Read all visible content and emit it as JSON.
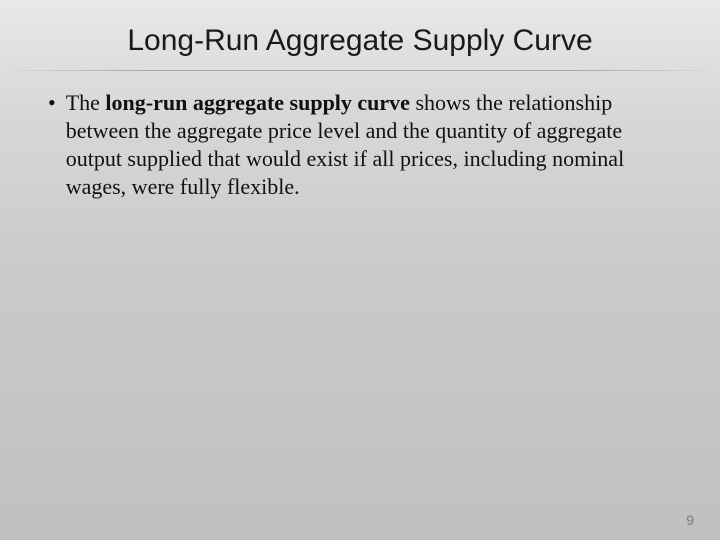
{
  "slide": {
    "title": "Long-Run Aggregate Supply Curve",
    "bullet": {
      "marker": "•",
      "pre": "The ",
      "bold": "long-run aggregate supply curve",
      "post": " shows the relationship between the aggregate price level and the quantity of aggregate output supplied that would exist if all prices, including nominal wages, were fully flexible."
    },
    "page_number": "9"
  },
  "style": {
    "background_gradient": [
      "#e8e8e8",
      "#d8d8d8",
      "#cacaca",
      "#c0c0c0"
    ],
    "title_font": "Arial",
    "title_fontsize": 30,
    "body_font": "Times New Roman",
    "body_fontsize": 22,
    "text_color": "#111111",
    "page_number_color": "#7d7d7d"
  }
}
